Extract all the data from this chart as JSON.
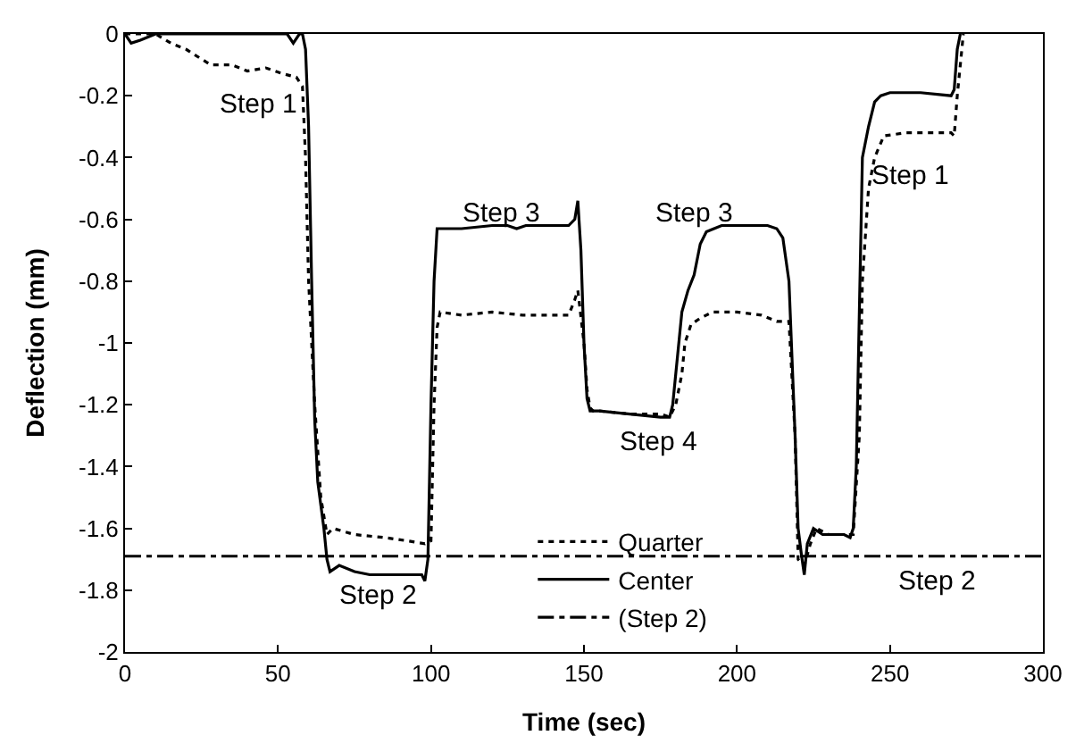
{
  "chart_data": {
    "type": "line",
    "xlabel": "Time (sec)",
    "ylabel": "Deflection (mm)",
    "xlim": [
      0,
      300
    ],
    "xticks": [
      0,
      50,
      100,
      150,
      200,
      250,
      300
    ],
    "ylim": [
      -2,
      0
    ],
    "yticks": [
      -2,
      -1.8,
      -1.6,
      -1.4,
      -1.2,
      -1,
      -0.8,
      -0.6,
      -0.4,
      -0.2,
      0
    ],
    "legend": "bottom",
    "marker": "none",
    "series": [
      {
        "name": "Quarter",
        "color": "#000000",
        "line_style": "dotted",
        "x": [
          0,
          10,
          15,
          20,
          28,
          35,
          40,
          46,
          52,
          56,
          58,
          59,
          60,
          62,
          64,
          66,
          68,
          75,
          85,
          92,
          98,
          100,
          101,
          102,
          103,
          110,
          120,
          130,
          140,
          145,
          147,
          148,
          150,
          151,
          152,
          153,
          155,
          165,
          175,
          178,
          180,
          182,
          183,
          185,
          188,
          192,
          200,
          208,
          213,
          217,
          219,
          220,
          222,
          224,
          226,
          230,
          237,
          238,
          240,
          241,
          243,
          245,
          248,
          255,
          265,
          270,
          271,
          272,
          274
        ],
        "values": [
          0,
          0,
          -0.03,
          -0.05,
          -0.1,
          -0.1,
          -0.12,
          -0.11,
          -0.13,
          -0.14,
          -0.17,
          -0.4,
          -0.8,
          -1.2,
          -1.5,
          -1.62,
          -1.6,
          -1.62,
          -1.63,
          -1.64,
          -1.65,
          -1.64,
          -1.2,
          -0.95,
          -0.9,
          -0.91,
          -0.9,
          -0.91,
          -0.91,
          -0.91,
          -0.86,
          -0.83,
          -1.0,
          -1.15,
          -1.21,
          -1.22,
          -1.22,
          -1.23,
          -1.23,
          -1.24,
          -1.2,
          -1.1,
          -1.0,
          -0.94,
          -0.92,
          -0.9,
          -0.9,
          -0.91,
          -0.93,
          -0.93,
          -1.3,
          -1.7,
          -1.72,
          -1.65,
          -1.6,
          -1.62,
          -1.62,
          -1.62,
          -1.3,
          -0.8,
          -0.5,
          -0.4,
          -0.33,
          -0.32,
          -0.32,
          -0.32,
          -0.33,
          -0.2,
          0
        ]
      },
      {
        "name": "Center",
        "color": "#000000",
        "line_style": "solid",
        "x": [
          0,
          2,
          5,
          10,
          15,
          20,
          30,
          40,
          50,
          53,
          55,
          57,
          58,
          59,
          60,
          61,
          62,
          63,
          65,
          66,
          67,
          70,
          75,
          80,
          90,
          97,
          98,
          99,
          100,
          101,
          102,
          110,
          120,
          125,
          128,
          131,
          140,
          145,
          147,
          148,
          149,
          150,
          151,
          152,
          153,
          155,
          165,
          175,
          178,
          179,
          180,
          182,
          184,
          186,
          188,
          190,
          195,
          200,
          210,
          213,
          215,
          217,
          219,
          220,
          221,
          222,
          223,
          225,
          228,
          230,
          235,
          237,
          238,
          239,
          240,
          241,
          243,
          245,
          247,
          250,
          260,
          270,
          271,
          272,
          273
        ],
        "values": [
          0,
          -0.03,
          -0.02,
          0,
          0,
          0,
          0,
          0,
          0,
          0,
          -0.03,
          0,
          0,
          -0.05,
          -0.3,
          -0.8,
          -1.25,
          -1.45,
          -1.6,
          -1.7,
          -1.74,
          -1.72,
          -1.74,
          -1.75,
          -1.75,
          -1.75,
          -1.77,
          -1.7,
          -1.2,
          -0.8,
          -0.63,
          -0.63,
          -0.62,
          -0.62,
          -0.63,
          -0.62,
          -0.62,
          -0.62,
          -0.6,
          -0.54,
          -0.7,
          -1.0,
          -1.18,
          -1.22,
          -1.22,
          -1.22,
          -1.23,
          -1.24,
          -1.24,
          -1.2,
          -1.1,
          -0.9,
          -0.83,
          -0.78,
          -0.68,
          -0.64,
          -0.62,
          -0.62,
          -0.62,
          -0.63,
          -0.66,
          -0.8,
          -1.3,
          -1.6,
          -1.68,
          -1.75,
          -1.65,
          -1.6,
          -1.62,
          -1.62,
          -1.62,
          -1.63,
          -1.6,
          -1.4,
          -0.9,
          -0.4,
          -0.3,
          -0.22,
          -0.2,
          -0.19,
          -0.19,
          -0.2,
          -0.18,
          -0.05,
          0
        ]
      }
    ],
    "ref_lines": [
      {
        "axis": "y",
        "value": -1.69,
        "label": "(Step 2)",
        "color": "#000000",
        "line_style": "dashed"
      }
    ],
    "annotations": [
      "Step 1",
      "Step 2",
      "Step 3",
      "Step 4",
      "Step 3",
      "Step 2",
      "Step 1"
    ]
  }
}
